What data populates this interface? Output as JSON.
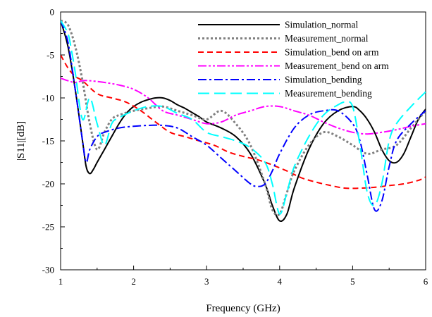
{
  "chart_data": {
    "type": "line",
    "xlabel": "Frequency (GHz)",
    "ylabel": "|S11|[dB]",
    "xlim": [
      1,
      6
    ],
    "ylim": [
      -30,
      0
    ],
    "xticks": [
      1,
      2,
      3,
      4,
      5,
      6
    ],
    "yticks": [
      0,
      -5,
      -10,
      -15,
      -20,
      -25,
      -30
    ],
    "grid": false,
    "legend_position": "top-right",
    "series": [
      {
        "name": "Simulation_normal",
        "color": "#000000",
        "dash": "solid",
        "x": [
          1.0,
          1.1,
          1.2,
          1.3,
          1.35,
          1.4,
          1.45,
          1.5,
          1.6,
          1.7,
          1.8,
          1.9,
          2.0,
          2.1,
          2.2,
          2.3,
          2.4,
          2.5,
          2.6,
          2.7,
          2.8,
          2.9,
          3.0,
          3.2,
          3.4,
          3.6,
          3.8,
          3.9,
          4.0,
          4.1,
          4.2,
          4.4,
          4.6,
          4.8,
          5.0,
          5.1,
          5.2,
          5.3,
          5.4,
          5.5,
          5.6,
          5.7,
          5.8,
          5.9,
          6.0
        ],
        "values": [
          -1,
          -4,
          -9,
          -15,
          -18,
          -18.8,
          -18.3,
          -17.5,
          -16,
          -14.5,
          -13,
          -11.8,
          -11,
          -10.5,
          -10.2,
          -10,
          -10,
          -10.3,
          -10.8,
          -11.2,
          -11.7,
          -12.2,
          -12.8,
          -13.5,
          -14.5,
          -16.5,
          -20,
          -22.5,
          -24.3,
          -23.5,
          -20.5,
          -16,
          -13,
          -11.5,
          -11,
          -11.5,
          -12.5,
          -14,
          -16,
          -17.3,
          -17.5,
          -16.5,
          -14.5,
          -12.5,
          -11.3
        ]
      },
      {
        "name": "Measurement_normal",
        "color": "#808080",
        "dash": "dotted",
        "x": [
          1.0,
          1.1,
          1.2,
          1.3,
          1.4,
          1.5,
          1.6,
          1.7,
          1.8,
          2.0,
          2.2,
          2.4,
          2.6,
          2.8,
          3.0,
          3.2,
          3.4,
          3.6,
          3.8,
          3.9,
          4.0,
          4.1,
          4.2,
          4.4,
          4.6,
          4.8,
          5.0,
          5.2,
          5.4,
          5.6,
          5.8,
          6.0
        ],
        "values": [
          -1,
          -1.5,
          -4,
          -8,
          -13,
          -16,
          -14,
          -12.5,
          -12,
          -11.5,
          -11.2,
          -11,
          -11.5,
          -12,
          -12.5,
          -11.5,
          -13,
          -15.5,
          -20,
          -23,
          -23.5,
          -21,
          -18.5,
          -15.5,
          -14,
          -14.5,
          -15.5,
          -16.5,
          -16,
          -15.5,
          -13.5,
          -11.5
        ]
      },
      {
        "name": "Simulation_bend on arm",
        "color": "#ff0000",
        "dash": "dashed",
        "x": [
          1.0,
          1.1,
          1.2,
          1.3,
          1.5,
          1.7,
          1.9,
          2.1,
          2.3,
          2.5,
          2.7,
          2.9,
          3.1,
          3.3,
          3.5,
          3.7,
          3.9,
          4.1,
          4.3,
          4.5,
          4.7,
          4.9,
          5.1,
          5.3,
          5.5,
          5.7,
          5.9,
          6.0
        ],
        "values": [
          -5,
          -6.5,
          -7.5,
          -8,
          -9.5,
          -10,
          -10.5,
          -11.5,
          -12.8,
          -14,
          -14.5,
          -15,
          -15.5,
          -16.3,
          -16.8,
          -17.2,
          -17.8,
          -18.5,
          -19.3,
          -19.8,
          -20.2,
          -20.5,
          -20.5,
          -20.4,
          -20.2,
          -20,
          -19.6,
          -19.2
        ]
      },
      {
        "name": "Measurement_bend on arm",
        "color": "#ff00ff",
        "dash": "dashdotdot",
        "x": [
          1.0,
          1.1,
          1.2,
          1.3,
          1.4,
          1.6,
          1.8,
          2.0,
          2.2,
          2.4,
          2.6,
          2.8,
          3.0,
          3.2,
          3.4,
          3.6,
          3.8,
          4.0,
          4.2,
          4.4,
          4.6,
          4.8,
          5.0,
          5.2,
          5.4,
          5.6,
          5.8,
          6.0
        ],
        "values": [
          -7.7,
          -8,
          -8.2,
          -8,
          -8,
          -8.2,
          -8.5,
          -9,
          -10,
          -11.5,
          -12,
          -12.5,
          -13,
          -12.8,
          -12,
          -11.5,
          -11,
          -11,
          -11.5,
          -12,
          -12.8,
          -13.5,
          -14,
          -14.2,
          -14,
          -13.7,
          -13.3,
          -13
        ]
      },
      {
        "name": "Simulation_bending",
        "color": "#0000ff",
        "dash": "dashdot",
        "x": [
          1.0,
          1.1,
          1.2,
          1.3,
          1.35,
          1.4,
          1.5,
          1.6,
          1.8,
          2.0,
          2.2,
          2.4,
          2.6,
          2.8,
          3.0,
          3.2,
          3.4,
          3.6,
          3.7,
          3.8,
          3.9,
          4.0,
          4.2,
          4.4,
          4.6,
          4.8,
          5.0,
          5.1,
          5.2,
          5.3,
          5.4,
          5.5,
          5.6,
          5.8,
          6.0
        ],
        "values": [
          -1,
          -3.5,
          -9,
          -15,
          -17.5,
          -16,
          -14.5,
          -14,
          -13.5,
          -13.3,
          -13.2,
          -13.2,
          -13.5,
          -14.5,
          -15.5,
          -17,
          -18.5,
          -20,
          -20.3,
          -20,
          -18.5,
          -16.5,
          -13.5,
          -12,
          -11.5,
          -11.5,
          -13,
          -15,
          -19,
          -23,
          -22,
          -18,
          -15,
          -13,
          -11.5
        ]
      },
      {
        "name": "Measurement_bending",
        "color": "#00ffff",
        "dash": "longdash",
        "x": [
          1.0,
          1.1,
          1.15,
          1.2,
          1.3,
          1.4,
          1.5,
          1.6,
          1.7,
          1.8,
          2.0,
          2.2,
          2.4,
          2.6,
          2.8,
          3.0,
          3.2,
          3.4,
          3.6,
          3.8,
          3.9,
          4.0,
          4.1,
          4.2,
          4.4,
          4.6,
          4.8,
          4.9,
          5.0,
          5.1,
          5.2,
          5.3,
          5.4,
          5.5,
          5.6,
          5.8,
          6.0
        ],
        "values": [
          -1,
          -2.5,
          -4.5,
          -7,
          -12.5,
          -10,
          -13,
          -15.5,
          -13,
          -12.3,
          -11.5,
          -11,
          -11,
          -11.8,
          -12.5,
          -14,
          -14.5,
          -15,
          -15.8,
          -17.5,
          -20,
          -23.5,
          -21,
          -18,
          -14.5,
          -12,
          -10.8,
          -10.5,
          -11,
          -15.5,
          -21,
          -22.5,
          -20,
          -15,
          -13,
          -11,
          -9.3
        ]
      }
    ]
  }
}
